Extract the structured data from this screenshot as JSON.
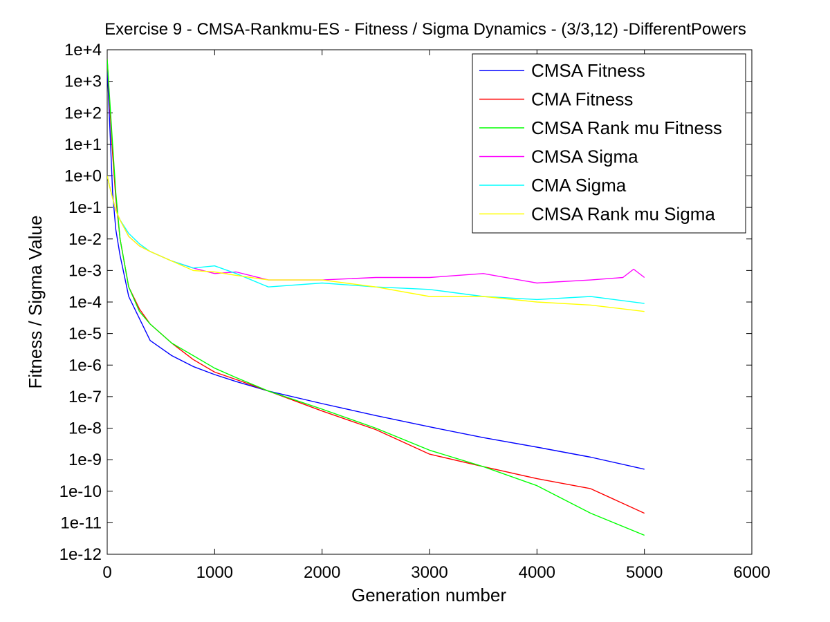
{
  "chart_data": {
    "type": "line",
    "title": "Exercise 9 - CMSA-Rankmu-ES - Fitness / Sigma Dynamics - (3/3,12) -DifferentPowers",
    "xlabel": "Generation number",
    "ylabel": "Fitness / Sigma Value",
    "xlim": [
      0,
      6000
    ],
    "ylim": [
      1e-12,
      10000
    ],
    "yscale": "log",
    "grid": false,
    "legend_position": "top-right",
    "x_ticks": [
      0,
      1000,
      2000,
      3000,
      4000,
      5000,
      6000
    ],
    "x_tick_labels": [
      "0",
      "1000",
      "2000",
      "3000",
      "4000",
      "5000",
      "6000"
    ],
    "y_ticks": [
      10000.0,
      1000.0,
      100.0,
      10.0,
      1,
      0.1,
      0.01,
      0.001,
      0.0001,
      1e-05,
      1e-06,
      1e-07,
      1e-08,
      1e-09,
      1e-10,
      1e-11,
      1e-12
    ],
    "y_tick_labels": [
      "1e+4",
      "1e+3",
      "1e+2",
      "1e+1",
      "1e+0",
      "1e-1",
      "1e-2",
      "1e-3",
      "1e-4",
      "1e-5",
      "1e-6",
      "1e-7",
      "1e-8",
      "1e-9",
      "1e-10",
      "1e-11",
      "1e-12"
    ],
    "series": [
      {
        "name": "CMSA Fitness",
        "color": "#0000ff",
        "x": [
          0,
          20,
          50,
          80,
          120,
          200,
          300,
          400,
          600,
          800,
          1000,
          1200,
          1500,
          2000,
          2500,
          3000,
          3500,
          4000,
          4500,
          5000
        ],
        "y": [
          3000,
          80,
          0.3,
          0.02,
          0.003,
          0.00015,
          3e-05,
          6e-06,
          2e-06,
          9e-07,
          5e-07,
          3e-07,
          1.5e-07,
          6e-08,
          2.5e-08,
          1.1e-08,
          5e-09,
          2.5e-09,
          1.2e-09,
          5e-10
        ]
      },
      {
        "name": "CMA Fitness",
        "color": "#ff0000",
        "x": [
          0,
          20,
          50,
          80,
          120,
          200,
          300,
          400,
          600,
          800,
          1000,
          1200,
          1500,
          2000,
          2500,
          3000,
          3500,
          4000,
          4500,
          5000
        ],
        "y": [
          5000,
          300,
          5,
          0.2,
          0.01,
          0.0003,
          6e-05,
          2e-05,
          5e-06,
          1.5e-06,
          6e-07,
          3.5e-07,
          1.5e-07,
          3.5e-08,
          9e-09,
          1.5e-09,
          6e-10,
          2.5e-10,
          1.2e-10,
          2e-11
        ]
      },
      {
        "name": "CMSA Rank mu Fitness",
        "color": "#00ff00",
        "x": [
          0,
          20,
          50,
          80,
          120,
          200,
          300,
          400,
          600,
          800,
          1000,
          1200,
          1500,
          2000,
          2500,
          3000,
          3500,
          4000,
          4500,
          5000
        ],
        "y": [
          5000,
          400,
          10,
          0.3,
          0.01,
          0.0003,
          5e-05,
          2e-05,
          5e-06,
          2e-06,
          8e-07,
          4e-07,
          1.5e-07,
          4e-08,
          1e-08,
          2e-09,
          6e-10,
          1.5e-10,
          2e-11,
          4e-12
        ]
      },
      {
        "name": "CMSA Sigma",
        "color": "#ff00ff",
        "x": [
          0,
          20,
          50,
          80,
          120,
          200,
          300,
          400,
          600,
          800,
          1000,
          1200,
          1500,
          2000,
          2500,
          3000,
          3500,
          4000,
          4500,
          4800,
          4900,
          5000
        ],
        "y": [
          1.0,
          0.5,
          0.2,
          0.08,
          0.04,
          0.012,
          0.006,
          0.004,
          0.002,
          0.0012,
          0.0008,
          0.0009,
          0.0005,
          0.0005,
          0.0006,
          0.0006,
          0.0008,
          0.0004,
          0.0005,
          0.0006,
          0.0011,
          0.0006
        ]
      },
      {
        "name": "CMA Sigma",
        "color": "#00ffff",
        "x": [
          0,
          20,
          50,
          80,
          120,
          200,
          300,
          400,
          600,
          800,
          1000,
          1200,
          1500,
          2000,
          2500,
          3000,
          3500,
          4000,
          4500,
          5000
        ],
        "y": [
          1.0,
          0.5,
          0.2,
          0.08,
          0.04,
          0.015,
          0.007,
          0.004,
          0.002,
          0.0012,
          0.0014,
          0.0008,
          0.0003,
          0.0004,
          0.0003,
          0.00025,
          0.00015,
          0.00012,
          0.00015,
          9e-05
        ]
      },
      {
        "name": "CMSA Rank mu Sigma",
        "color": "#ffff00",
        "x": [
          0,
          20,
          50,
          80,
          120,
          200,
          300,
          400,
          600,
          800,
          1000,
          1200,
          1500,
          2000,
          2500,
          3000,
          3500,
          4000,
          4500,
          5000
        ],
        "y": [
          1.0,
          0.5,
          0.2,
          0.08,
          0.04,
          0.012,
          0.006,
          0.004,
          0.002,
          0.001,
          0.0009,
          0.0007,
          0.0005,
          0.0005,
          0.0003,
          0.00015,
          0.00015,
          0.0001,
          8e-05,
          5e-05
        ]
      }
    ]
  }
}
